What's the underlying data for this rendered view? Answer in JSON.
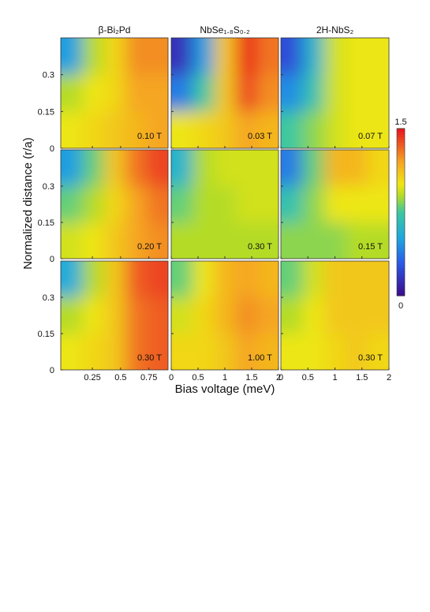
{
  "chart_data": {
    "type": "heatmap-grid",
    "xlabel": "Bias voltage (meV)",
    "ylabel": "Normalized distance (r/a)",
    "columns": [
      {
        "title": "β-Bi₂Pd",
        "xlim": [
          -0.03,
          0.92
        ],
        "xticks": [
          0.25,
          0.5,
          0.75
        ]
      },
      {
        "title": "NbSe₁.₈S₀.₂",
        "xlim": [
          0,
          2
        ],
        "xticks": [
          0,
          0.5,
          1,
          1.5,
          2
        ]
      },
      {
        "title": "2H-NbS₂",
        "xlim": [
          0,
          2
        ],
        "xticks": [
          0,
          0.5,
          1,
          1.5,
          2
        ]
      }
    ],
    "ylim": [
      0,
      0.45
    ],
    "yticks": [
      0,
      0.15,
      0.3
    ],
    "clim": [
      0,
      1.5
    ],
    "cticks": [
      0,
      1.5
    ],
    "panels": [
      [
        {
          "label": "0.10 T",
          "values": [
            [
              0.5,
              0.9,
              1.05,
              1.25,
              1.25
            ],
            [
              0.9,
              1.0,
              1.05,
              1.2,
              1.2
            ],
            [
              1.0,
              1.05,
              1.1,
              1.15,
              1.2
            ]
          ]
        },
        {
          "label": "0.03 T",
          "values": [
            [
              0.15,
              0.5,
              1.1,
              1.45,
              1.3
            ],
            [
              0.4,
              0.75,
              1.1,
              1.4,
              1.25
            ],
            [
              1.0,
              1.05,
              1.1,
              1.2,
              1.15
            ]
          ]
        },
        {
          "label": "0.07 T",
          "values": [
            [
              0.25,
              0.6,
              0.95,
              1.0,
              1.0
            ],
            [
              0.45,
              0.7,
              0.95,
              1.0,
              1.0
            ],
            [
              0.75,
              0.85,
              0.95,
              1.0,
              1.0
            ]
          ]
        }
      ],
      [
        {
          "label": "0.20 T",
          "values": [
            [
              0.5,
              0.8,
              1.1,
              1.3,
              1.4
            ],
            [
              0.8,
              0.9,
              1.05,
              1.2,
              1.3
            ],
            [
              0.95,
              1.0,
              1.1,
              1.2,
              1.25
            ]
          ]
        },
        {
          "label": "0.30 T",
          "values": [
            [
              0.6,
              0.9,
              0.95,
              0.95,
              0.95
            ],
            [
              0.8,
              0.9,
              0.9,
              0.95,
              0.95
            ],
            [
              0.9,
              0.9,
              0.9,
              0.9,
              0.9
            ]
          ]
        },
        {
          "label": "0.15 T",
          "values": [
            [
              0.4,
              0.8,
              1.15,
              1.15,
              1.05
            ],
            [
              0.7,
              0.85,
              1.0,
              1.0,
              1.0
            ],
            [
              0.85,
              0.85,
              0.85,
              0.9,
              0.9
            ]
          ]
        }
      ],
      [
        {
          "label": "0.30 T",
          "values": [
            [
              0.55,
              0.9,
              1.1,
              1.35,
              1.4
            ],
            [
              0.9,
              1.0,
              1.1,
              1.3,
              1.35
            ],
            [
              1.0,
              1.05,
              1.1,
              1.3,
              1.35
            ]
          ]
        },
        {
          "label": "1.00 T",
          "values": [
            [
              0.8,
              1.0,
              1.15,
              1.2,
              1.15
            ],
            [
              0.95,
              1.05,
              1.15,
              1.25,
              1.2
            ],
            [
              1.05,
              1.05,
              1.1,
              1.2,
              1.15
            ]
          ]
        },
        {
          "label": "0.30 T",
          "values": [
            [
              0.8,
              0.95,
              1.1,
              1.1,
              1.1
            ],
            [
              0.9,
              1.0,
              1.1,
              1.1,
              1.1
            ],
            [
              1.0,
              1.0,
              1.05,
              1.1,
              1.05
            ]
          ]
        }
      ]
    ]
  }
}
